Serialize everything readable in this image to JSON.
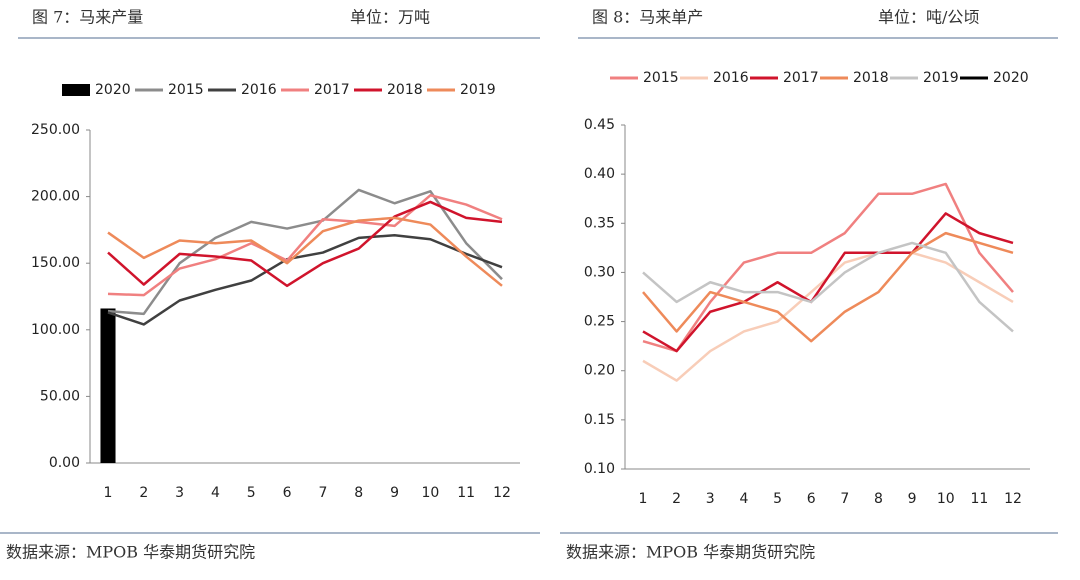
{
  "chart_data": [
    {
      "type": "line",
      "title": "图 7：马来产量",
      "unit": "单位：万吨",
      "source": "数据来源：MPOB 华泰期货研究院",
      "categories": [
        "1",
        "2",
        "3",
        "4",
        "5",
        "6",
        "7",
        "8",
        "9",
        "10",
        "11",
        "12"
      ],
      "ylim": [
        0,
        250
      ],
      "yticks": [
        {
          "value": 0,
          "label": "0.00"
        },
        {
          "value": 50,
          "label": "50.00"
        },
        {
          "value": 100,
          "label": "100.00"
        },
        {
          "value": 150,
          "label": "150.00"
        },
        {
          "value": 200,
          "label": "200.00"
        },
        {
          "value": 250,
          "label": "250.00"
        }
      ],
      "series": [
        {
          "name": "2020",
          "color": "#000000",
          "mark": "bar",
          "values": [
            116,
            null,
            null,
            null,
            null,
            null,
            null,
            null,
            null,
            null,
            null,
            null
          ]
        },
        {
          "name": "2015",
          "color": "#8c8c8c",
          "values": [
            114,
            112,
            150,
            169,
            181,
            176,
            182,
            205,
            195,
            204,
            165,
            138
          ]
        },
        {
          "name": "2016",
          "color": "#404040",
          "values": [
            113,
            104,
            122,
            130,
            137,
            153,
            158,
            169,
            171,
            168,
            157,
            147
          ]
        },
        {
          "name": "2017",
          "color": "#f08080",
          "values": [
            127,
            126,
            146,
            153,
            165,
            152,
            183,
            181,
            178,
            201,
            194,
            183
          ]
        },
        {
          "name": "2018",
          "color": "#d0142c",
          "values": [
            158,
            134,
            157,
            155,
            152,
            133,
            150,
            161,
            185,
            196,
            184,
            181
          ]
        },
        {
          "name": "2019",
          "color": "#ee8a5a",
          "values": [
            173,
            154,
            167,
            165,
            167,
            150,
            174,
            182,
            184,
            179,
            155,
            133
          ]
        }
      ]
    },
    {
      "type": "line",
      "title": "图 8：马来单产",
      "unit": "单位：吨/公顷",
      "source": "数据来源：MPOB 华泰期货研究院",
      "categories": [
        "1",
        "2",
        "3",
        "4",
        "5",
        "6",
        "7",
        "8",
        "9",
        "10",
        "11",
        "12"
      ],
      "ylim": [
        0.1,
        0.45
      ],
      "yticks": [
        {
          "value": 0.1,
          "label": "0.10"
        },
        {
          "value": 0.15,
          "label": "0.15"
        },
        {
          "value": 0.2,
          "label": "0.20"
        },
        {
          "value": 0.25,
          "label": "0.25"
        },
        {
          "value": 0.3,
          "label": "0.30"
        },
        {
          "value": 0.35,
          "label": "0.35"
        },
        {
          "value": 0.4,
          "label": "0.40"
        },
        {
          "value": 0.45,
          "label": "0.45"
        }
      ],
      "series": [
        {
          "name": "2015",
          "color": "#f08080",
          "values": [
            0.23,
            0.22,
            0.27,
            0.31,
            0.32,
            0.32,
            0.34,
            0.38,
            0.38,
            0.39,
            0.32,
            0.28
          ]
        },
        {
          "name": "2016",
          "color": "#f8cdb8",
          "values": [
            0.21,
            0.19,
            0.22,
            0.24,
            0.25,
            0.28,
            0.31,
            0.32,
            0.32,
            0.31,
            0.29,
            0.27
          ]
        },
        {
          "name": "2017",
          "color": "#d0142c",
          "values": [
            0.24,
            0.22,
            0.26,
            0.27,
            0.29,
            0.27,
            0.32,
            0.32,
            0.32,
            0.36,
            0.34,
            0.33
          ]
        },
        {
          "name": "2018",
          "color": "#ee8a5a",
          "values": [
            0.28,
            0.24,
            0.28,
            0.27,
            0.26,
            0.23,
            0.26,
            0.28,
            0.32,
            0.34,
            0.33,
            0.32
          ]
        },
        {
          "name": "2019",
          "color": "#c4c4c4",
          "values": [
            0.3,
            0.27,
            0.29,
            0.28,
            0.28,
            0.27,
            0.3,
            0.32,
            0.33,
            0.32,
            0.27,
            0.24
          ]
        },
        {
          "name": "2020",
          "color": "#000000",
          "values": [
            null,
            null,
            null,
            null,
            null,
            null,
            null,
            null,
            null,
            null,
            null,
            null
          ]
        }
      ]
    }
  ]
}
